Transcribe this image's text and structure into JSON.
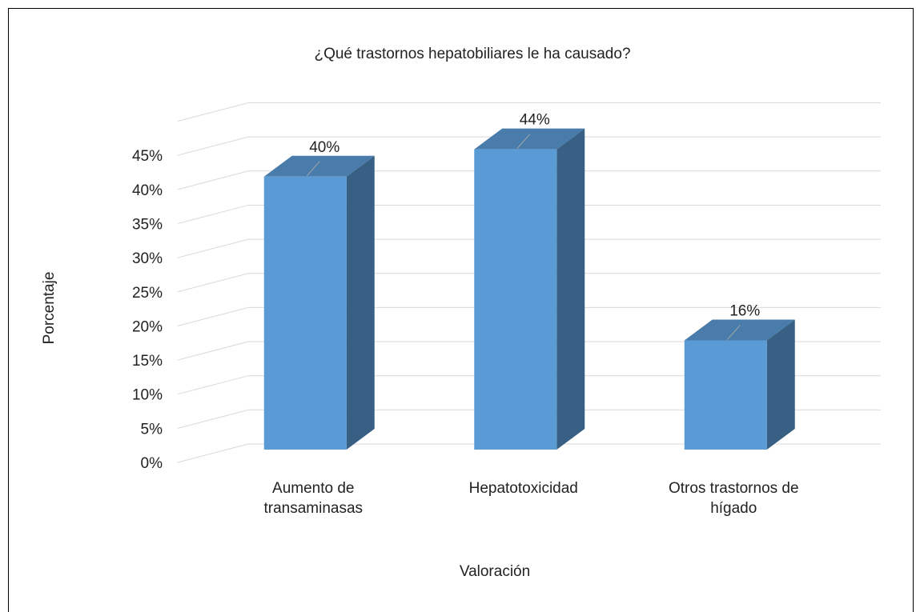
{
  "chart_data": {
    "type": "bar3d",
    "title": "¿Qué trastornos hepatobiliares le ha causado?",
    "x_label": "Valoración",
    "y_label": "Porcentaje",
    "categories": [
      "Aumento de transaminasas",
      "Hepatotoxicidad",
      "Otros trastornos de hígado"
    ],
    "values": [
      40,
      44,
      16
    ],
    "value_labels": [
      "40%",
      "44%",
      "16%"
    ],
    "color": "#5b9bd5",
    "ylim": [
      0,
      50
    ],
    "yticks": [
      {
        "value": 0,
        "label": "0%"
      },
      {
        "value": 5,
        "label": "5%"
      },
      {
        "value": 10,
        "label": "10%"
      },
      {
        "value": 15,
        "label": "15%"
      },
      {
        "value": 20,
        "label": "20%"
      },
      {
        "value": 25,
        "label": "25%"
      },
      {
        "value": 30,
        "label": "30%"
      },
      {
        "value": 35,
        "label": "35%"
      },
      {
        "value": 40,
        "label": "40%"
      },
      {
        "value": 45,
        "label": "45%"
      }
    ],
    "grid": true
  }
}
